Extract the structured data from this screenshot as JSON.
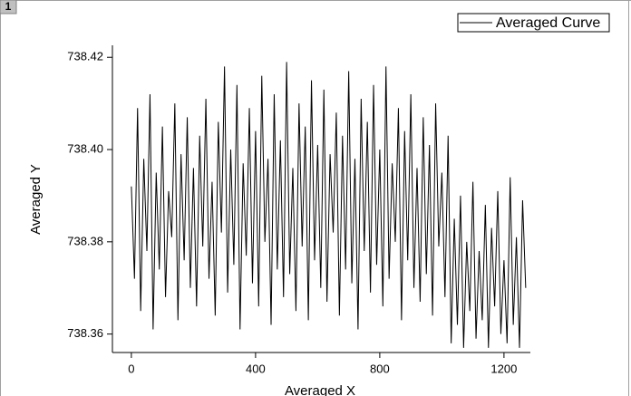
{
  "chart_data": {
    "type": "line",
    "panel_label": "1",
    "x_label": "Averaged X",
    "y_label": "Averaged Y",
    "xlim": [
      -61,
      1285
    ],
    "xticks": [
      0,
      400,
      800,
      1200
    ],
    "ylim": [
      738.356,
      738.4226
    ],
    "yticks": [
      {
        "value": 738.36,
        "label": "738.36"
      },
      {
        "value": 738.38,
        "label": "738.38"
      },
      {
        "value": 738.4,
        "label": "738.40"
      },
      {
        "value": 738.42,
        "label": "738.42"
      }
    ],
    "legend": "top-right",
    "series": [
      {
        "name": "Averaged Curve",
        "color": "#000000",
        "x": [
          0,
          10,
          20,
          30,
          40,
          50,
          60,
          70,
          80,
          90,
          100,
          110,
          120,
          130,
          140,
          150,
          160,
          170,
          180,
          190,
          200,
          210,
          220,
          230,
          240,
          250,
          260,
          270,
          280,
          290,
          300,
          310,
          320,
          330,
          340,
          350,
          360,
          370,
          380,
          390,
          400,
          410,
          420,
          430,
          440,
          450,
          460,
          470,
          480,
          490,
          500,
          510,
          520,
          530,
          540,
          550,
          560,
          570,
          580,
          590,
          600,
          610,
          620,
          630,
          640,
          650,
          660,
          670,
          680,
          690,
          700,
          710,
          720,
          730,
          740,
          750,
          760,
          770,
          780,
          790,
          800,
          810,
          820,
          830,
          840,
          850,
          860,
          870,
          880,
          890,
          900,
          910,
          920,
          930,
          940,
          950,
          960,
          970,
          980,
          990,
          1000,
          1010,
          1020,
          1030,
          1040,
          1050,
          1060,
          1070,
          1080,
          1090,
          1100,
          1110,
          1120,
          1130,
          1140,
          1150,
          1160,
          1170,
          1180,
          1190,
          1200,
          1210,
          1220,
          1230,
          1240,
          1250,
          1260,
          1270
        ],
        "values": [
          738.392,
          738.372,
          738.409,
          738.365,
          738.398,
          738.378,
          738.412,
          738.361,
          738.395,
          738.374,
          738.405,
          738.368,
          738.391,
          738.381,
          738.41,
          738.363,
          738.399,
          738.376,
          738.407,
          738.37,
          738.396,
          738.366,
          738.403,
          738.379,
          738.411,
          738.372,
          738.393,
          738.364,
          738.406,
          738.382,
          738.418,
          738.369,
          738.4,
          738.375,
          738.414,
          738.361,
          738.397,
          738.377,
          738.409,
          738.371,
          738.404,
          738.366,
          738.416,
          738.38,
          738.398,
          738.362,
          738.412,
          738.374,
          738.402,
          738.368,
          738.419,
          738.373,
          738.396,
          738.365,
          738.41,
          738.379,
          738.405,
          738.363,
          738.415,
          738.376,
          738.401,
          738.37,
          738.413,
          738.367,
          738.399,
          738.382,
          738.408,
          738.364,
          738.403,
          738.374,
          738.417,
          738.371,
          738.398,
          738.361,
          738.411,
          738.378,
          738.406,
          738.369,
          738.414,
          738.375,
          738.4,
          738.366,
          738.418,
          738.372,
          738.397,
          738.38,
          738.409,
          738.363,
          738.404,
          738.376,
          738.412,
          738.37,
          738.396,
          738.367,
          738.407,
          738.373,
          738.401,
          738.364,
          738.41,
          738.379,
          738.395,
          738.368,
          738.403,
          738.358,
          738.385,
          738.362,
          738.39,
          738.357,
          738.38,
          738.365,
          738.393,
          738.359,
          738.378,
          738.363,
          738.388,
          738.357,
          738.383,
          738.366,
          738.391,
          738.36,
          738.376,
          738.358,
          738.394,
          738.362,
          738.381,
          738.357,
          738.389,
          738.37
        ]
      }
    ]
  }
}
